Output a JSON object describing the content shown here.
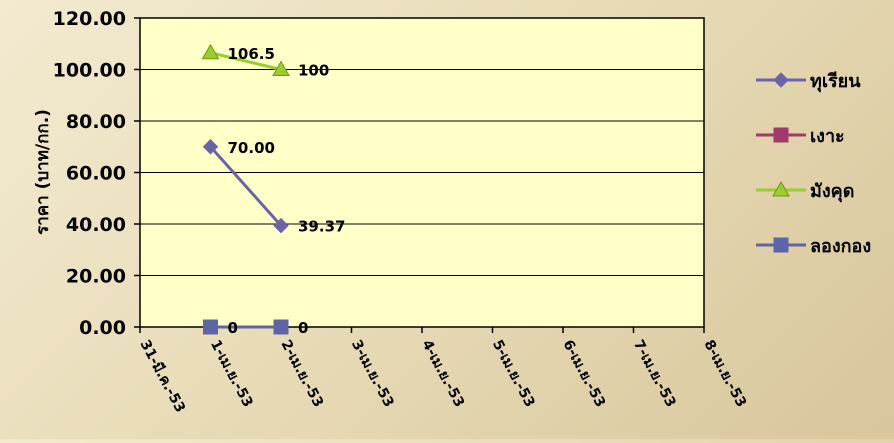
{
  "chart_data": {
    "type": "line",
    "title": "",
    "ylabel": "ราคา  (บาท/กก.)",
    "xlabel": "",
    "ylim": [
      0,
      120
    ],
    "yticks": [
      "0.00",
      "20.00",
      "40.00",
      "60.00",
      "80.00",
      "100.00",
      "120.00"
    ],
    "categories": [
      "31-มี.ค.-53",
      "1-เม.ย.-53",
      "2-เม.ย.-53",
      "3-เม.ย.-53",
      "4-เม.ย.-53",
      "5-เม.ย.-53",
      "6-เม.ย.-53",
      "7-เม.ย.-53",
      "8-เม.ย.-53"
    ],
    "grid": true,
    "legend_position": "right",
    "series": [
      {
        "name": "ทุเรียน",
        "color": "#6a64a6",
        "marker": "diamond",
        "values": [
          null,
          70.0,
          39.37,
          null,
          null,
          null,
          null,
          null,
          null
        ],
        "labels": [
          null,
          "70.00",
          "39.37",
          null,
          null,
          null,
          null,
          null,
          null
        ]
      },
      {
        "name": "เงาะ",
        "color": "#9e3a6c",
        "marker": "square",
        "values": [
          null,
          0,
          0,
          null,
          null,
          null,
          null,
          null,
          null
        ],
        "labels": [
          null,
          null,
          null,
          null,
          null,
          null,
          null,
          null,
          null
        ]
      },
      {
        "name": "มังคุด",
        "color": "#9acd32",
        "marker": "triangle",
        "values": [
          null,
          106.5,
          100,
          null,
          null,
          null,
          null,
          null,
          null
        ],
        "labels": [
          null,
          "106.5",
          "100",
          null,
          null,
          null,
          null,
          null,
          null
        ]
      },
      {
        "name": "ลองกอง",
        "color": "#5f64a6",
        "marker": "square",
        "values": [
          null,
          0,
          0,
          null,
          null,
          null,
          null,
          null,
          null
        ],
        "labels": [
          null,
          "0",
          "0",
          null,
          null,
          null,
          null,
          null,
          null
        ]
      }
    ]
  }
}
